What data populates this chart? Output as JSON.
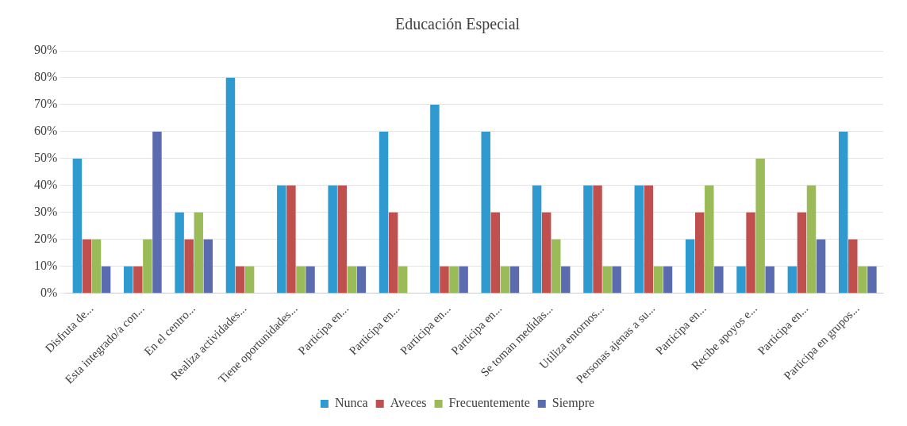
{
  "chart_data": {
    "type": "bar",
    "title": "Educación Especial",
    "categories": [
      "Disfruta de...",
      "Esta integrado/a con...",
      "En el centro...",
      "Realiza actividades...",
      "Tiene oportunidades...",
      "Participa en...",
      "Participa en...",
      "Participa en...",
      "Participa en...",
      "Se toman medidas...",
      "Utiliza entornos...",
      "Personas ajenas a su...",
      "Participa en...",
      "Recibe apoyos e...",
      "Participa en...",
      "Participa en grupos..."
    ],
    "series": [
      {
        "name": "Nunca",
        "color": "#2f9ad0",
        "values": [
          50,
          10,
          30,
          80,
          40,
          40,
          60,
          70,
          60,
          40,
          40,
          40,
          20,
          10,
          10,
          60
        ]
      },
      {
        "name": "Aveces",
        "color": "#c0504d",
        "values": [
          20,
          10,
          20,
          10,
          40,
          40,
          30,
          10,
          30,
          30,
          40,
          40,
          30,
          30,
          30,
          20
        ]
      },
      {
        "name": "Frecuentemente",
        "color": "#9bbb59",
        "values": [
          20,
          20,
          30,
          10,
          10,
          10,
          10,
          10,
          10,
          20,
          10,
          10,
          40,
          50,
          40,
          10
        ]
      },
      {
        "name": "Siempre",
        "color": "#5b6bb0",
        "values": [
          10,
          60,
          20,
          0,
          10,
          10,
          0,
          10,
          10,
          10,
          10,
          10,
          10,
          10,
          20,
          10
        ]
      }
    ],
    "ylim": [
      0,
      90
    ],
    "yticks": [
      {
        "value": 0,
        "label": "0%"
      },
      {
        "value": 10,
        "label": "10%"
      },
      {
        "value": 20,
        "label": "20%"
      },
      {
        "value": 30,
        "label": "30%"
      },
      {
        "value": 40,
        "label": "40%"
      },
      {
        "value": 50,
        "label": "50%"
      },
      {
        "value": 60,
        "label": "60%"
      },
      {
        "value": 70,
        "label": "70%"
      },
      {
        "value": 80,
        "label": "80%"
      },
      {
        "value": 90,
        "label": "90%"
      }
    ],
    "grid": "y",
    "legend": "bottom"
  }
}
